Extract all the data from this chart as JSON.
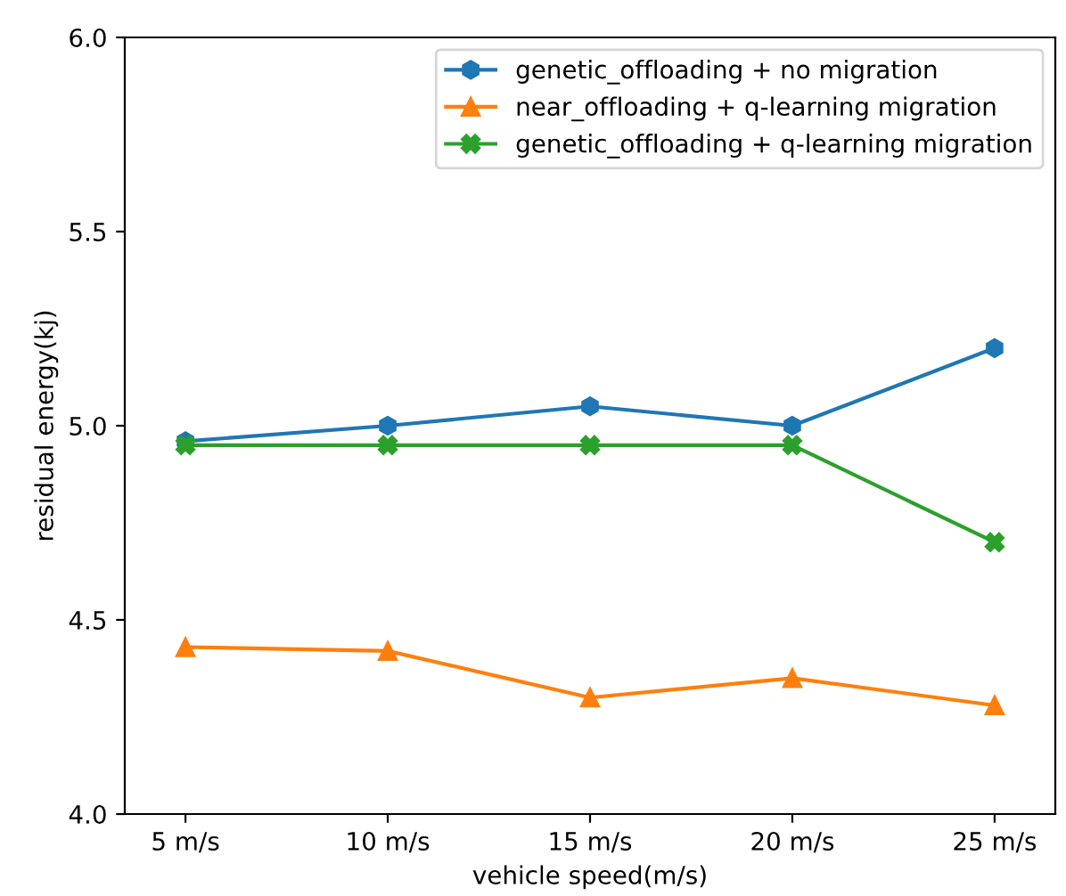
{
  "chart_data": {
    "type": "line",
    "xlabel": "vehicle speed(m/s)",
    "ylabel": "residual energy(kj)",
    "categories": [
      "5 m/s",
      "10 m/s",
      "15 m/s",
      "20 m/s",
      "25 m/s"
    ],
    "series": [
      {
        "name": "genetic_offloading + no migration",
        "color": "#1f77b4",
        "marker": "circle",
        "values": [
          4.96,
          5.0,
          5.05,
          5.0,
          5.2
        ]
      },
      {
        "name": "near_offloading + q-learning migration",
        "color": "#ff7f0e",
        "marker": "triangle",
        "values": [
          4.43,
          4.42,
          4.3,
          4.35,
          4.28
        ]
      },
      {
        "name": "genetic_offloading + q-learning migration",
        "color": "#2ca02c",
        "marker": "cross",
        "values": [
          4.95,
          4.95,
          4.95,
          4.95,
          4.7
        ]
      }
    ],
    "ylim": [
      4.0,
      6.0
    ],
    "yticks": [
      {
        "value": 4,
        "label": "4.0"
      },
      4.5,
      {
        "value": 5,
        "label": "5.0"
      },
      5.5,
      {
        "value": 6,
        "label": "6.0"
      }
    ],
    "grid": false,
    "legend": "top right",
    "line_style": "solid"
  }
}
